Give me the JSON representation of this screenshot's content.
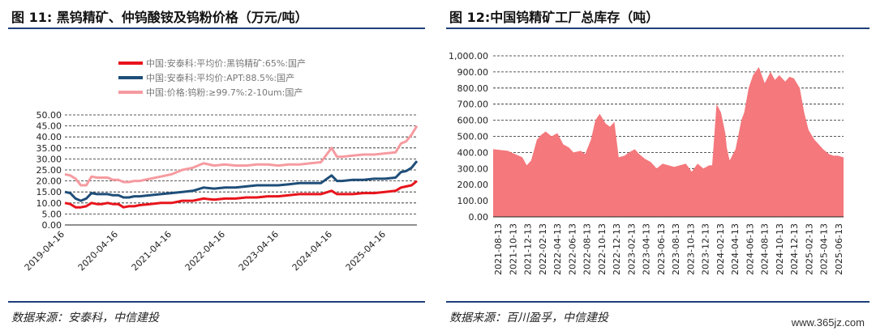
{
  "left": {
    "title": "图 11: 黑钨精矿、仲钨酸铵及钨粉价格（万元/吨）",
    "source": "数据来源：安泰科，中信建投"
  },
  "right": {
    "title": "图 12:中国钨精矿工厂总库存（吨）",
    "source": "数据来源：百川盈孚，中信建投"
  },
  "watermark": "www.365jz.com",
  "chart_data": [
    {
      "type": "line",
      "title": "",
      "ylim": [
        0,
        50
      ],
      "yticks": [
        "0.00",
        "5.00",
        "10.00",
        "15.00",
        "20.00",
        "25.00",
        "30.00",
        "35.00",
        "40.00",
        "45.00",
        "50.00"
      ],
      "xticks": [
        "2019-04-16",
        "2020-04-16",
        "2021-04-16",
        "2022-04-16",
        "2023-04-16",
        "2024-04-16",
        "2025-04-16"
      ],
      "x": [
        0,
        0.1,
        0.2,
        0.3,
        0.4,
        0.5,
        0.6,
        0.7,
        0.8,
        0.9,
        1.0,
        1.1,
        1.2,
        1.3,
        1.4,
        1.6,
        1.8,
        2.0,
        2.2,
        2.4,
        2.6,
        2.8,
        3.0,
        3.2,
        3.4,
        3.6,
        3.8,
        4.0,
        4.2,
        4.4,
        4.6,
        4.8,
        5.0,
        5.1,
        5.2,
        5.4,
        5.6,
        5.8,
        6.0,
        6.2,
        6.3,
        6.4,
        6.5,
        6.6
      ],
      "series": [
        {
          "name": "中国:安泰科:平均价:黑钨精矿:65%:国产",
          "color": "#e8141c",
          "values": [
            10,
            9.5,
            8,
            8,
            8.5,
            10,
            9.5,
            9.5,
            10,
            9.5,
            9.5,
            8,
            8.5,
            8.5,
            9,
            9.5,
            10,
            10,
            11,
            11,
            12,
            11.5,
            12,
            12,
            12.5,
            12.5,
            13,
            13,
            13.5,
            14,
            14,
            14,
            15.5,
            14,
            14,
            14,
            14.5,
            14.5,
            15,
            15.5,
            17,
            17.5,
            18,
            20
          ]
        },
        {
          "name": "中国:安泰科:平均价:APT:88.5%:国产",
          "color": "#1f4e79",
          "values": [
            15,
            14.5,
            12,
            11,
            12,
            14.5,
            14,
            14,
            14,
            13.5,
            13.5,
            12.5,
            12.5,
            13,
            13,
            13.5,
            14,
            14.5,
            15,
            15.5,
            17,
            16.5,
            17,
            17,
            17.5,
            18,
            18,
            18,
            18.5,
            19,
            19,
            19,
            22.5,
            20,
            20,
            20.5,
            20.5,
            21,
            21,
            21.5,
            24,
            24.5,
            26,
            29
          ]
        },
        {
          "name": "中国:价格:钨粉:≥99.7%:2-10um:国产",
          "color": "#f59ba0",
          "values": [
            23,
            22.5,
            21,
            18,
            18,
            22,
            21.5,
            21.5,
            21.5,
            20.5,
            20.5,
            19.5,
            19.5,
            20,
            20,
            21,
            22,
            23,
            25,
            26,
            28,
            27,
            27.5,
            27,
            27,
            27.5,
            27.5,
            27,
            27.5,
            27.5,
            28,
            28.5,
            35,
            31,
            31,
            31.5,
            32,
            32,
            32.5,
            33,
            37,
            38,
            41,
            45
          ]
        }
      ]
    },
    {
      "type": "area",
      "title": "",
      "ylim": [
        0,
        1000
      ],
      "yticks": [
        "0.00",
        "100.00",
        "200.00",
        "300.00",
        "400.00",
        "500.00",
        "600.00",
        "700.00",
        "800.00",
        "900.00",
        "1,000.00"
      ],
      "xticks": [
        "2021-08-13",
        "2021-10-13",
        "2021-12-13",
        "2022-02-13",
        "2022-04-13",
        "2022-06-13",
        "2022-08-13",
        "2022-10-13",
        "2022-12-13",
        "2023-02-13",
        "2023-04-13",
        "2023-06-13",
        "2023-08-13",
        "2023-10-13",
        "2023-12-13",
        "2024-02-13",
        "2024-04-13",
        "2024-06-13",
        "2024-08-13",
        "2024-10-13",
        "2024-12-13",
        "2025-02-13",
        "2025-04-13",
        "2025-06-13"
      ],
      "x": [
        0,
        1,
        2,
        2.3,
        2.6,
        3,
        3.3,
        3.6,
        4,
        4.4,
        4.8,
        5.2,
        5.5,
        6,
        6.3,
        6.7,
        7,
        7.3,
        7.7,
        8,
        8.3,
        8.6,
        9,
        9.3,
        9.7,
        10,
        10.4,
        10.8,
        11.2,
        11.6,
        12,
        12.4,
        12.8,
        13.2,
        13.6,
        14,
        14.4,
        14.8,
        15,
        15.3,
        15.6,
        15.9,
        16,
        16.2,
        16.6,
        17,
        17.2,
        17.5,
        17.8,
        18.2,
        18.6,
        19,
        19.3,
        19.6,
        20,
        20.3,
        20.6,
        21,
        21.3,
        21.6,
        22,
        22.3,
        22.6,
        23,
        23.3,
        23.6,
        24
      ],
      "series": [
        {
          "name": "中国钨精矿工厂总库存",
          "color": "#f4787c",
          "values": [
            420,
            410,
            370,
            320,
            350,
            480,
            510,
            530,
            500,
            520,
            450,
            430,
            400,
            410,
            390,
            480,
            600,
            640,
            580,
            560,
            590,
            370,
            380,
            400,
            420,
            390,
            360,
            340,
            300,
            330,
            320,
            310,
            320,
            330,
            280,
            330,
            300,
            320,
            320,
            700,
            650,
            520,
            430,
            350,
            420,
            600,
            650,
            800,
            880,
            930,
            830,
            900,
            850,
            880,
            840,
            870,
            860,
            800,
            650,
            540,
            480,
            450,
            420,
            390,
            380,
            380,
            370
          ]
        }
      ]
    }
  ]
}
